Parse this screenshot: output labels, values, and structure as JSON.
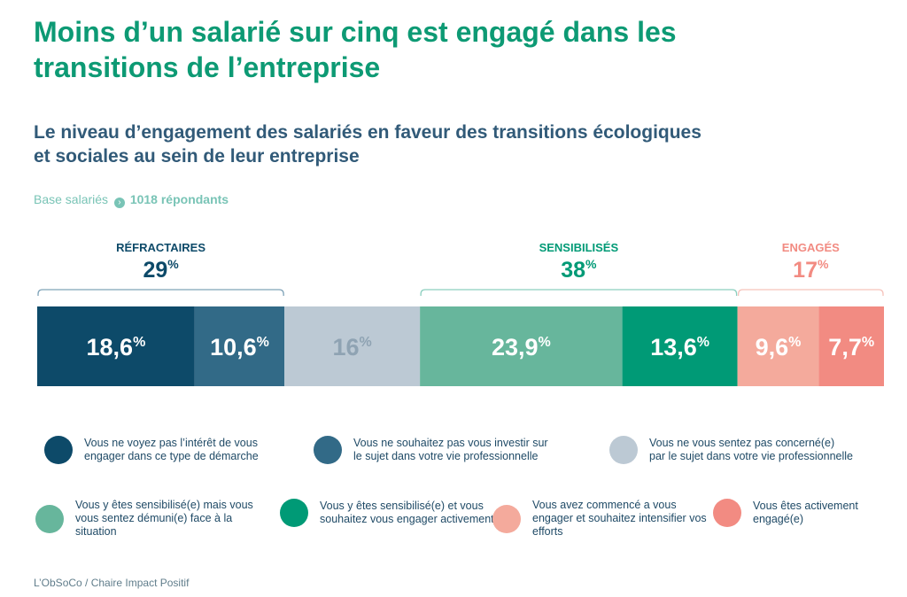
{
  "header": {
    "title": "Moins d’un salarié sur cinq est engagé dans les transitions de l’entreprise",
    "subtitle": "Le niveau d’engagement des salariés en faveur des transitions écologiques et sociales au sein de leur entreprise",
    "base_label": "Base salariés",
    "base_value": "1018 répondants"
  },
  "chart_data": {
    "type": "bar",
    "orientation": "horizontal-stacked",
    "unit": "%",
    "segments": [
      {
        "value": 18.6,
        "label": "18,6",
        "color": "#0d4a69",
        "label_color": "#ffffff",
        "legend": "Vous ne voyez pas l’intérêt de vous engager dans ce type de démarche"
      },
      {
        "value": 10.6,
        "label": "10,6",
        "color": "#326a87",
        "label_color": "#ffffff",
        "legend": "Vous ne souhaitez pas vous investir sur le sujet dans votre vie professionnelle"
      },
      {
        "value": 16,
        "label": "16",
        "color": "#bcc9d4",
        "label_color": "#8fa3b3",
        "legend": "Vous ne vous sentez pas concerné(e) par le sujet dans votre vie professionnelle"
      },
      {
        "value": 23.9,
        "label": "23,9",
        "color": "#67b69c",
        "label_color": "#ffffff",
        "legend": "Vous y êtes sensibilisé(e) mais vous vous sentez démuni(e) face à la situation"
      },
      {
        "value": 13.6,
        "label": "13,6",
        "color": "#009a76",
        "label_color": "#ffffff",
        "legend": "Vous y êtes sensibilisé(e) et vous souhaitez vous engager activement"
      },
      {
        "value": 9.6,
        "label": "9,6",
        "color": "#f4aa9c",
        "label_color": "#ffffff",
        "legend": "Vous avez commencé a vous engager et souhaitez intensifier vos efforts"
      },
      {
        "value": 7.7,
        "label": "7,7",
        "color": "#f28b82",
        "label_color": "#ffffff",
        "legend": "Vous êtes activement engagé(e)"
      }
    ],
    "groups": [
      {
        "name": "RÉFRACTAIRES",
        "total": "29",
        "segments": [
          0,
          1
        ],
        "color": "#0d4a69",
        "bracket_color": "#7fa3b8"
      },
      {
        "name": "SENSIBILISÉS",
        "total": "38",
        "segments": [
          3,
          4
        ],
        "color": "#009a76",
        "bracket_color": "#8ccfbf"
      },
      {
        "name": "ENGAGÉS",
        "total": "17",
        "segments": [
          5,
          6
        ],
        "color": "#f28b82",
        "bracket_color": "#f6c3bb"
      }
    ]
  },
  "footer": {
    "source": "L’ObSoCo / Chaire Impact Positif"
  }
}
